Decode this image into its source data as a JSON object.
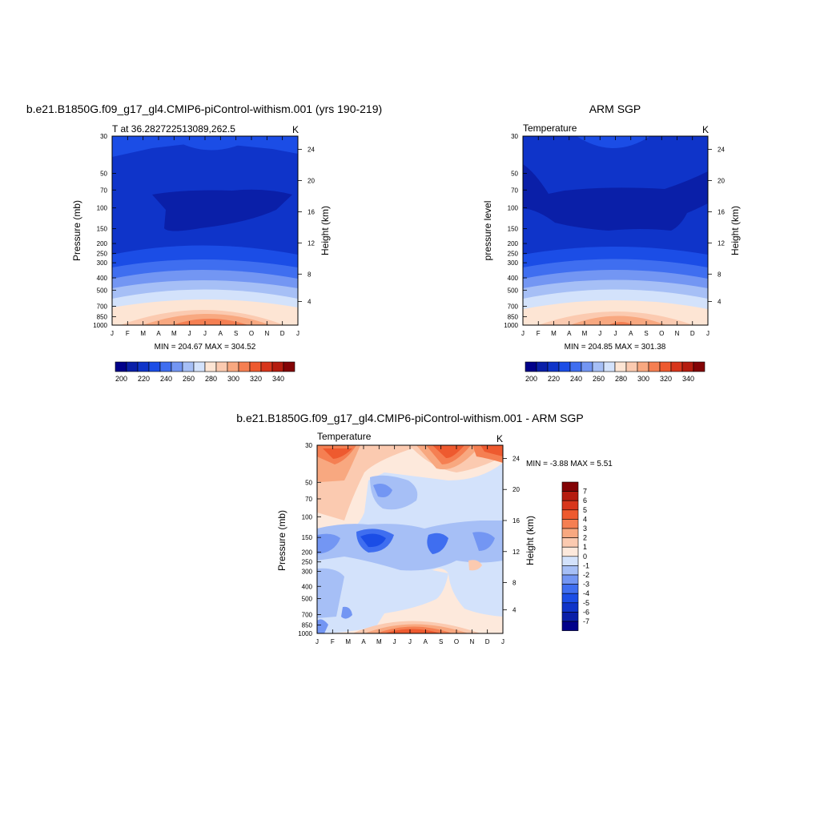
{
  "chart_data": [
    {
      "type": "contour",
      "id": "model",
      "title": "b.e21.B1850G.f09_g17_gl4.CMIP6-piControl-withism.001 (yrs 190-219)",
      "subtitle_left": "T at 36.282722513089,262.5",
      "subtitle_right": "K",
      "ylabel": "Pressure (mb)",
      "ylabel_right": "Height (km)",
      "x_ticks": [
        "J",
        "F",
        "M",
        "A",
        "M",
        "J",
        "J",
        "A",
        "S",
        "O",
        "N",
        "D",
        "J"
      ],
      "y_ticks": [
        30,
        50,
        70,
        100,
        150,
        200,
        250,
        300,
        400,
        500,
        700,
        850,
        1000
      ],
      "height_ticks": [
        24,
        20,
        16,
        12,
        8,
        4
      ],
      "minmax": "MIN = 204.67 MAX = 304.52",
      "colorbar_labels": [
        200,
        220,
        240,
        260,
        280,
        300,
        320,
        340
      ]
    },
    {
      "type": "contour",
      "id": "obs",
      "title": "ARM SGP",
      "subtitle_left": "Temperature",
      "subtitle_right": "K",
      "ylabel": "pressure level",
      "ylabel_right": "Height (km)",
      "x_ticks": [
        "J",
        "F",
        "M",
        "A",
        "M",
        "J",
        "J",
        "A",
        "S",
        "O",
        "N",
        "D",
        "J"
      ],
      "y_ticks": [
        30,
        50,
        70,
        100,
        150,
        200,
        250,
        300,
        400,
        500,
        700,
        850,
        1000
      ],
      "height_ticks": [
        24,
        20,
        16,
        12,
        8,
        4
      ],
      "minmax": "MIN = 204.85 MAX = 301.38",
      "colorbar_labels": [
        200,
        220,
        240,
        260,
        280,
        300,
        320,
        340
      ]
    },
    {
      "type": "contour",
      "id": "diff",
      "title": "b.e21.B1850G.f09_g17_gl4.CMIP6-piControl-withism.001 - ARM SGP",
      "subtitle_left": "Temperature",
      "subtitle_right": "K",
      "ylabel": "Pressure (mb)",
      "ylabel_right": "Height (km)",
      "x_ticks": [
        "J",
        "F",
        "M",
        "A",
        "M",
        "J",
        "J",
        "A",
        "S",
        "O",
        "N",
        "D",
        "J"
      ],
      "y_ticks": [
        30,
        50,
        70,
        100,
        150,
        200,
        250,
        300,
        400,
        500,
        700,
        850,
        1000
      ],
      "height_ticks": [
        24,
        20,
        16,
        12,
        8,
        4
      ],
      "minmax": "MIN =  -3.88 MAX =   5.51",
      "colorbar_labels": [
        7,
        6,
        5,
        4,
        3,
        2,
        1,
        0,
        -1,
        -2,
        -3,
        -4,
        -5,
        -6,
        -7
      ]
    }
  ],
  "colors": {
    "temp_scale": [
      "#01018a",
      "#0a1fa8",
      "#0f34c9",
      "#1b4de6",
      "#3f6ef0",
      "#7396f3",
      "#a6bff6",
      "#d3e2fb",
      "#fde5d4",
      "#fbcab0",
      "#f8a880",
      "#f57f52",
      "#ee5a2f",
      "#d8361c",
      "#b51c0f",
      "#830305"
    ],
    "diff_scale": [
      "#01018a",
      "#0a1fa8",
      "#0f34c9",
      "#1b4de6",
      "#3f6ef0",
      "#7396f3",
      "#a6bff6",
      "#d3e2fb",
      "#fde9dc",
      "#fbcab0",
      "#f8a880",
      "#f57f52",
      "#ee5a2f",
      "#d8361c",
      "#b51c0f",
      "#830305"
    ]
  }
}
